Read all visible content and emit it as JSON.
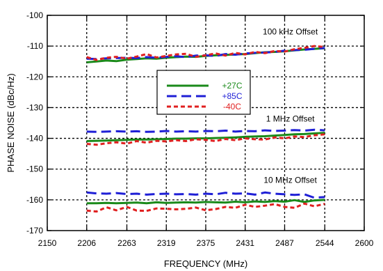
{
  "chart_data": {
    "type": "line",
    "title": "",
    "xlabel": "FREQUENCY (MHz)",
    "ylabel": "PHASE NOISE (dBc/Hz)",
    "xlim": [
      2150,
      2600
    ],
    "ylim": [
      -170,
      -100
    ],
    "x_ticks": [
      2150,
      2206,
      2263,
      2319,
      2375,
      2431,
      2487,
      2544,
      2600
    ],
    "y_ticks": [
      -100,
      -110,
      -120,
      -130,
      -140,
      -150,
      -160,
      -170
    ],
    "grid": true,
    "legend_position": "center",
    "annotations": [
      {
        "text": "100 kHz Offset",
        "x": 2495,
        "y": -106.2
      },
      {
        "text": "1 MHz Offset",
        "x": 2495,
        "y": -134.6
      },
      {
        "text": "10 MHz Offset",
        "x": 2495,
        "y": -154.5
      }
    ],
    "x": [
      2206,
      2220,
      2234,
      2248,
      2263,
      2277,
      2291,
      2305,
      2319,
      2333,
      2347,
      2361,
      2375,
      2389,
      2403,
      2417,
      2431,
      2445,
      2459,
      2473,
      2487,
      2501,
      2515,
      2529,
      2544
    ],
    "series": [
      {
        "name": "+27C",
        "offset": "100 kHz Offset",
        "color": "#1a8a1a",
        "style": "solid",
        "values": [
          -115.3,
          -115.0,
          -114.7,
          -114.9,
          -114.4,
          -114.2,
          -114.0,
          -114.1,
          -113.8,
          -113.6,
          -113.4,
          -113.5,
          -113.2,
          -113.0,
          -112.9,
          -112.7,
          -112.6,
          -112.3,
          -112.0,
          -111.9,
          -111.7,
          -111.4,
          -111.1,
          -110.9,
          -110.7
        ]
      },
      {
        "name": "+85C",
        "offset": "100 kHz Offset",
        "color": "#1f1fd6",
        "style": "long-dash",
        "values": [
          -114.1,
          -114.2,
          -114.0,
          -113.9,
          -113.8,
          -113.9,
          -113.6,
          -113.8,
          -113.5,
          -113.3,
          -113.6,
          -113.1,
          -113.0,
          -113.2,
          -112.6,
          -112.8,
          -112.4,
          -112.2,
          -112.1,
          -111.9,
          -111.5,
          -111.3,
          -111.2,
          -110.9,
          -110.6
        ]
      },
      {
        "name": "-40C",
        "offset": "100 kHz Offset",
        "color": "#e02020",
        "style": "short-dash",
        "values": [
          -113.6,
          -114.5,
          -113.8,
          -113.5,
          -114.1,
          -113.4,
          -112.6,
          -113.7,
          -113.2,
          -112.7,
          -112.5,
          -113.5,
          -113.0,
          -112.4,
          -113.1,
          -112.2,
          -112.7,
          -111.9,
          -112.3,
          -111.6,
          -111.8,
          -111.0,
          -110.6,
          -110.0,
          -110.3
        ]
      },
      {
        "name": "+27C",
        "offset": "1 MHz Offset",
        "color": "#1a8a1a",
        "style": "solid",
        "values": [
          -140.9,
          -140.8,
          -140.7,
          -140.6,
          -140.5,
          -140.4,
          -140.4,
          -140.3,
          -140.2,
          -140.1,
          -140.1,
          -140.0,
          -140.0,
          -139.9,
          -139.8,
          -139.7,
          -139.5,
          -139.4,
          -139.3,
          -139.1,
          -138.9,
          -138.7,
          -138.6,
          -138.4,
          -138.2
        ]
      },
      {
        "name": "+85C",
        "offset": "1 MHz Offset",
        "color": "#1f1fd6",
        "style": "long-dash",
        "values": [
          -137.8,
          -137.9,
          -137.8,
          -137.7,
          -137.8,
          -137.7,
          -137.9,
          -137.8,
          -137.6,
          -137.8,
          -137.7,
          -137.8,
          -137.6,
          -137.7,
          -137.5,
          -137.8,
          -137.6,
          -137.7,
          -137.4,
          -137.6,
          -137.5,
          -137.3,
          -137.5,
          -137.2,
          -137.4
        ]
      },
      {
        "name": "-40C",
        "offset": "1 MHz Offset",
        "color": "#e02020",
        "style": "short-dash",
        "values": [
          -141.8,
          -142.1,
          -141.6,
          -141.3,
          -141.7,
          -140.9,
          -141.4,
          -140.8,
          -141.0,
          -140.6,
          -140.9,
          -140.3,
          -140.5,
          -140.9,
          -140.2,
          -140.6,
          -140.0,
          -140.3,
          -140.4,
          -139.7,
          -140.0,
          -139.4,
          -139.6,
          -139.0,
          -138.7
        ]
      },
      {
        "name": "+27C",
        "offset": "10 MHz Offset",
        "color": "#1a8a1a",
        "style": "solid",
        "values": [
          -161.1,
          -161.1,
          -161.0,
          -161.1,
          -161.0,
          -160.9,
          -161.1,
          -160.8,
          -161.0,
          -160.9,
          -160.8,
          -160.9,
          -160.7,
          -160.8,
          -160.9,
          -160.6,
          -160.8,
          -160.5,
          -160.7,
          -160.4,
          -160.6,
          -160.1,
          -160.7,
          -160.2,
          -160.0
        ]
      },
      {
        "name": "+85C",
        "offset": "10 MHz Offset",
        "color": "#1f1fd6",
        "style": "long-dash",
        "values": [
          -157.6,
          -157.9,
          -158.0,
          -157.8,
          -158.1,
          -158.0,
          -158.3,
          -158.1,
          -158.0,
          -158.2,
          -158.1,
          -158.3,
          -158.0,
          -158.2,
          -157.7,
          -158.0,
          -157.9,
          -158.3,
          -157.6,
          -158.0,
          -158.2,
          -158.4,
          -158.2,
          -159.3,
          -159.1
        ]
      },
      {
        "name": "-40C",
        "offset": "10 MHz Offset",
        "color": "#e02020",
        "style": "short-dash",
        "values": [
          -163.5,
          -163.8,
          -162.4,
          -163.4,
          -162.3,
          -163.5,
          -163.6,
          -162.8,
          -162.9,
          -163.1,
          -162.9,
          -162.5,
          -163.4,
          -163.0,
          -162.3,
          -162.6,
          -161.6,
          -162.3,
          -161.9,
          -161.4,
          -162.3,
          -162.6,
          -161.2,
          -162.1,
          -161.3
        ]
      }
    ],
    "legend": [
      {
        "label": "+27C",
        "color": "#1a8a1a",
        "style": "solid"
      },
      {
        "label": "+85C",
        "color": "#1f1fd6",
        "style": "long-dash"
      },
      {
        "label": "-40C",
        "color": "#e02020",
        "style": "short-dash"
      }
    ]
  }
}
